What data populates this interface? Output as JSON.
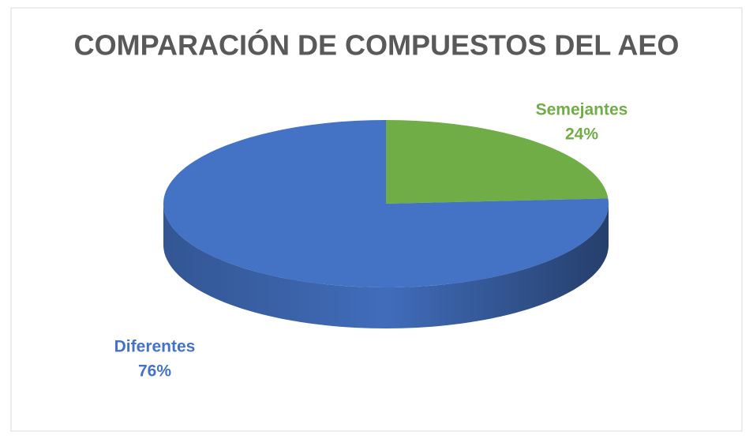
{
  "chart_data": {
    "type": "pie",
    "title": "COMPARACIÓN DE COMPUESTOS DEL AEO",
    "categories": [
      "Semejantes",
      "Diferentes"
    ],
    "values": [
      24,
      76
    ],
    "value_labels": [
      "24%",
      "76%"
    ],
    "colors": [
      "#70ad47",
      "#4472c4"
    ]
  }
}
